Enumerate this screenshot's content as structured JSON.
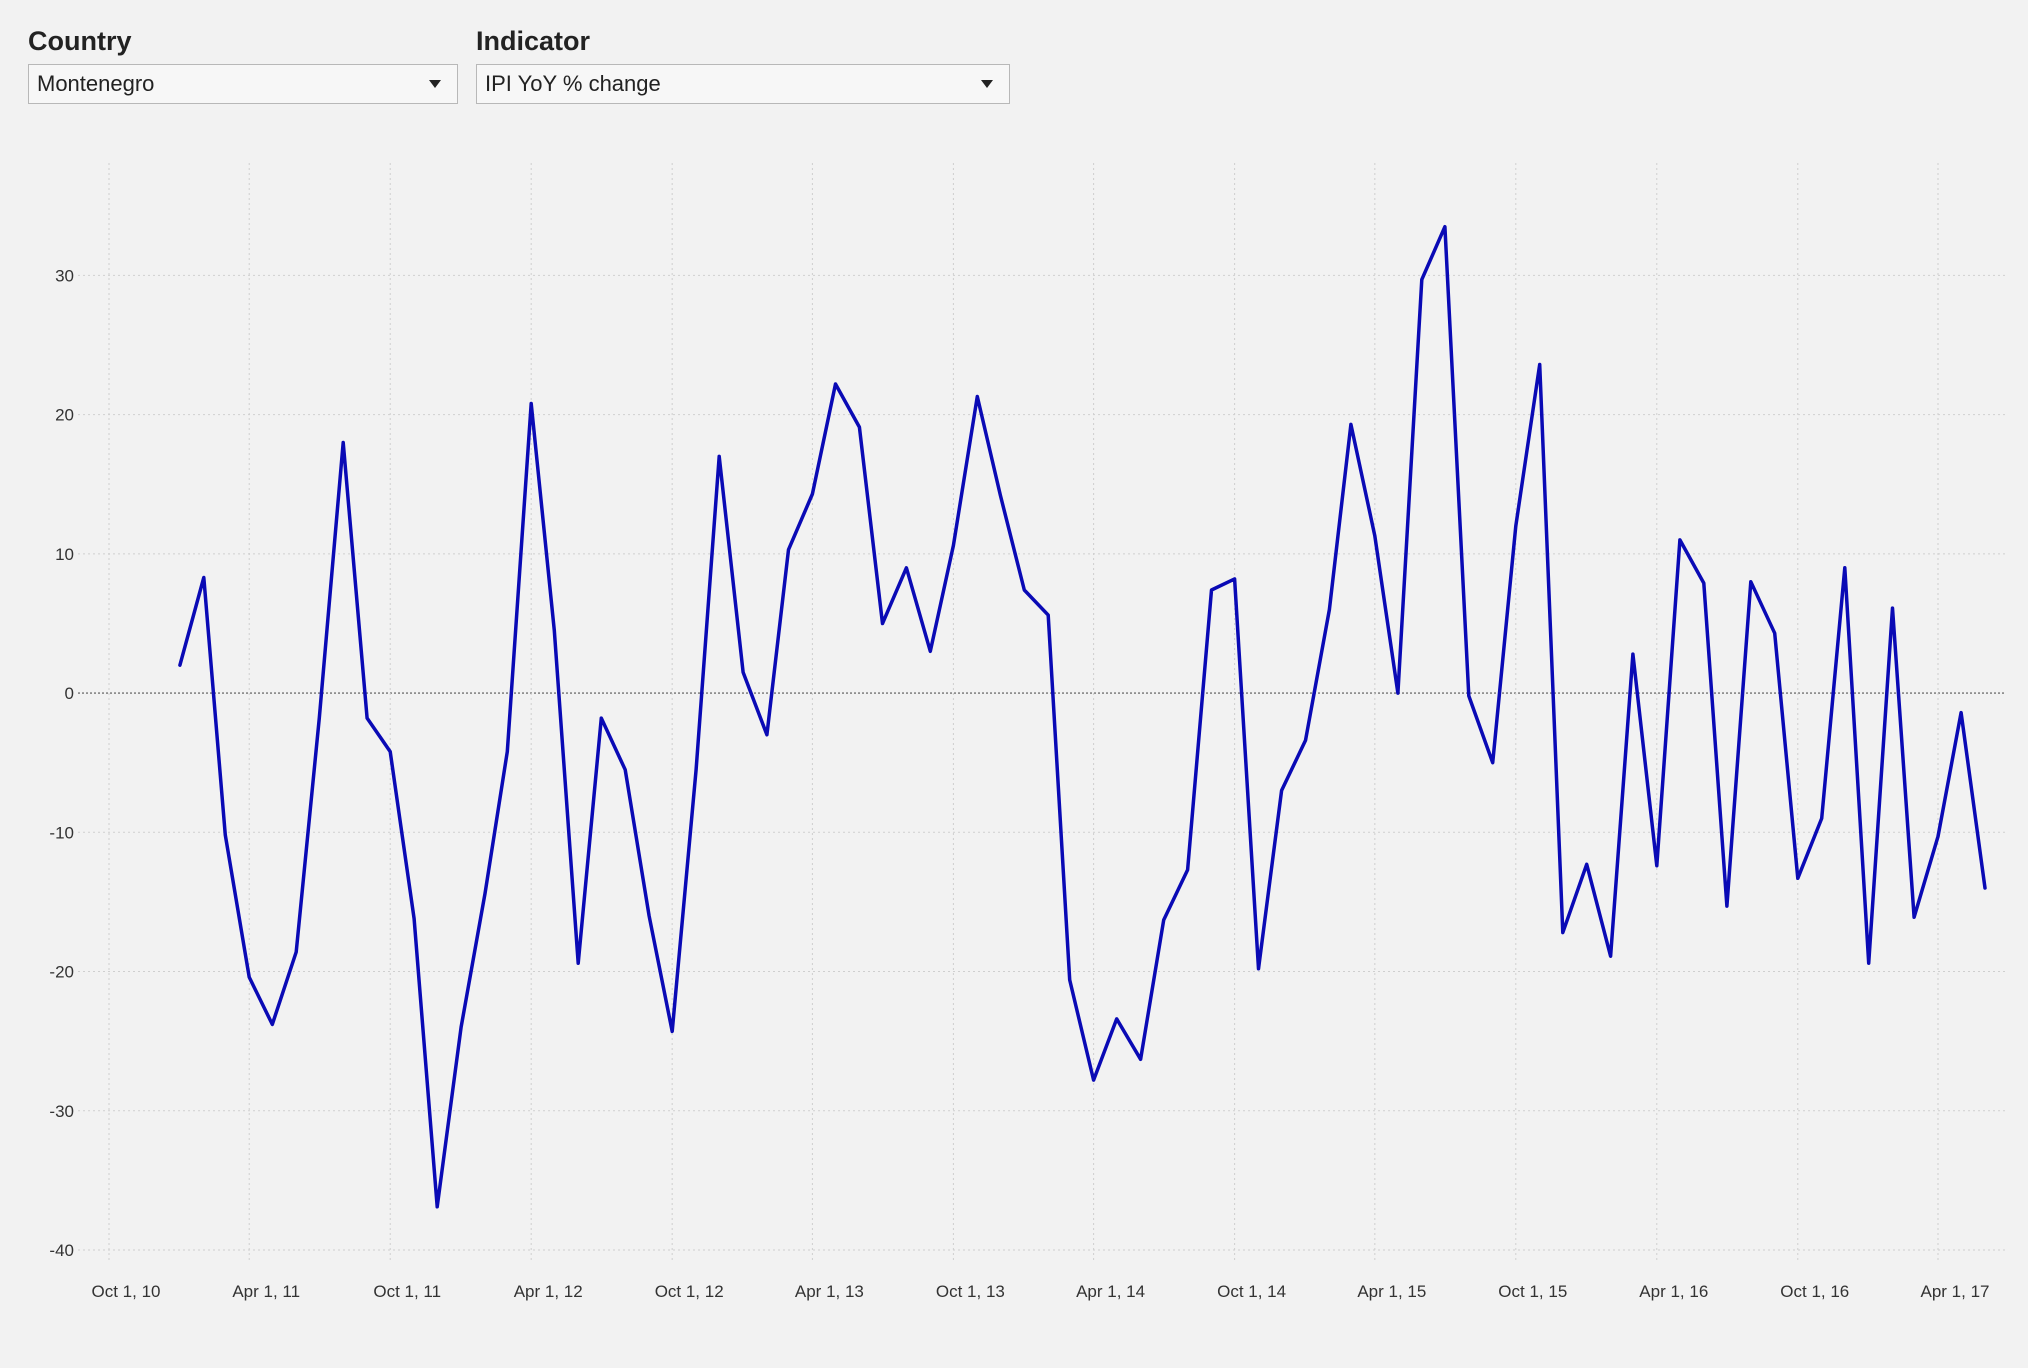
{
  "controls": {
    "country": {
      "label": "Country",
      "value": "Montenegro"
    },
    "indicator": {
      "label": "Indicator",
      "value": "IPI YoY % change"
    }
  },
  "icons": {
    "dropdown": "chevron-down-icon"
  },
  "colors": {
    "series": "#0a0ab5",
    "background": "#f2f2f2"
  },
  "chart_data": {
    "type": "line",
    "title": "",
    "xlabel": "",
    "ylabel": "",
    "grid": true,
    "legend": "none",
    "xlim": [
      "2010-10-01",
      "2017-06-01"
    ],
    "ylim": [
      -40,
      38
    ],
    "y_ticks": [
      30,
      20,
      10,
      0,
      -10,
      -20,
      -30,
      -40
    ],
    "y_tick_labels": [
      "30",
      "20",
      "10",
      "0",
      "-10",
      "-20",
      "-30",
      "-40"
    ],
    "x_ticks": [
      "2010-10-01",
      "2011-04-01",
      "2011-10-01",
      "2012-04-01",
      "2012-10-01",
      "2013-04-01",
      "2013-10-01",
      "2014-04-01",
      "2014-10-01",
      "2015-04-01",
      "2015-10-01",
      "2016-04-01",
      "2016-10-01",
      "2017-04-01"
    ],
    "x_tick_labels": [
      "Oct 1, 10",
      "Apr 1, 11",
      "Oct 1, 11",
      "Apr 1, 12",
      "Oct 1, 12",
      "Apr 1, 13",
      "Oct 1, 13",
      "Apr 1, 14",
      "Oct 1, 14",
      "Apr 1, 15",
      "Oct 1, 15",
      "Apr 1, 16",
      "Oct 1, 16",
      "Apr 1, 17"
    ],
    "series": [
      {
        "x": [
          "2011-01-01",
          "2011-02-01",
          "2011-03-01",
          "2011-04-01",
          "2011-05-01",
          "2011-06-01",
          "2011-07-01",
          "2011-08-01",
          "2011-09-01",
          "2011-10-01",
          "2011-11-01",
          "2011-12-01",
          "2012-01-01",
          "2012-02-01",
          "2012-03-01",
          "2012-04-01",
          "2012-05-01",
          "2012-06-01",
          "2012-07-01",
          "2012-08-01",
          "2012-09-01",
          "2012-10-01",
          "2012-11-01",
          "2012-12-01",
          "2013-01-01",
          "2013-02-01",
          "2013-03-01",
          "2013-04-01",
          "2013-05-01",
          "2013-06-01",
          "2013-07-01",
          "2013-08-01",
          "2013-09-01",
          "2013-10-01",
          "2013-11-01",
          "2013-12-01",
          "2014-01-01",
          "2014-02-01",
          "2014-03-01",
          "2014-04-01",
          "2014-05-01",
          "2014-06-01",
          "2014-07-01",
          "2014-08-01",
          "2014-09-01",
          "2014-10-01",
          "2014-11-01",
          "2014-12-01",
          "2015-01-01",
          "2015-02-01",
          "2015-03-01",
          "2015-04-01",
          "2015-05-01",
          "2015-06-01",
          "2015-07-01",
          "2015-08-01",
          "2015-09-01",
          "2015-10-01",
          "2015-11-01",
          "2015-12-01",
          "2016-01-01",
          "2016-02-01",
          "2016-03-01",
          "2016-04-01",
          "2016-05-01",
          "2016-06-01",
          "2016-07-01",
          "2016-08-01",
          "2016-09-01",
          "2016-10-01",
          "2016-11-01",
          "2016-12-01",
          "2017-01-01",
          "2017-02-01",
          "2017-03-01",
          "2017-04-01",
          "2017-05-01",
          "2017-06-01"
        ],
        "values": [
          2.0,
          8.3,
          -10.2,
          -20.4,
          -23.8,
          -18.6,
          -1.8,
          18.0,
          -1.8,
          -4.2,
          -16.2,
          -36.9,
          -24.0,
          -14.4,
          -4.2,
          20.8,
          4.5,
          -19.4,
          -1.8,
          -5.5,
          -16.0,
          -24.3,
          -5.5,
          17.0,
          1.5,
          -3.0,
          10.3,
          14.3,
          22.2,
          19.1,
          5.0,
          9.0,
          3.0,
          10.6,
          21.3,
          14.2,
          7.4,
          5.6,
          -20.6,
          -27.8,
          -23.4,
          -26.3,
          -16.3,
          -12.7,
          7.4,
          8.2,
          -19.8,
          -7.0,
          -3.4,
          6.0,
          19.3,
          11.3,
          0.0,
          29.7,
          33.5,
          -0.2,
          -5.0,
          12.0,
          23.6,
          -17.2,
          -12.3,
          -18.9,
          2.8,
          -12.4,
          11.0,
          7.9,
          -15.3,
          8.0,
          4.3,
          -13.3,
          -9.0,
          9.0,
          -19.4,
          6.1,
          -16.1,
          -10.3,
          -1.4,
          -14.0
        ]
      }
    ]
  }
}
